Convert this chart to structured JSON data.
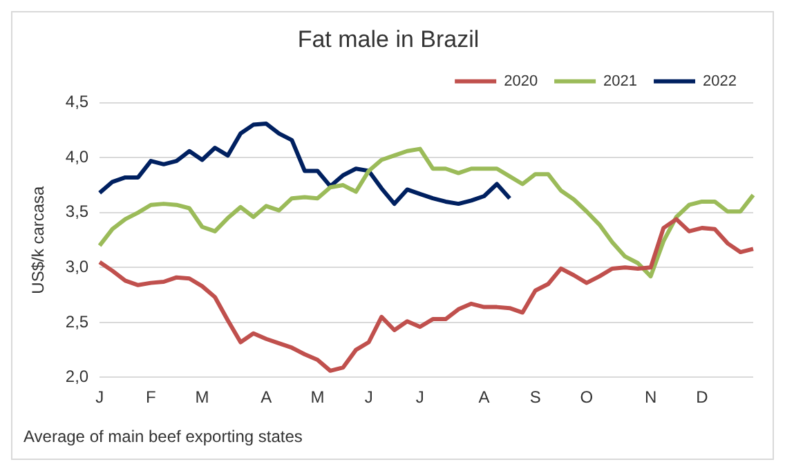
{
  "chart_data": {
    "type": "line",
    "title": "Fat male in Brazil",
    "ylabel": "US$/k carcasa",
    "annotations": [
      "Average of main beef exporting states"
    ],
    "categories": [
      "J",
      null,
      null,
      null,
      "F",
      null,
      null,
      null,
      "M",
      null,
      null,
      null,
      null,
      "A",
      null,
      null,
      null,
      "M",
      null,
      null,
      null,
      "J",
      null,
      null,
      null,
      "J",
      null,
      null,
      null,
      null,
      "A",
      null,
      null,
      null,
      "S",
      null,
      null,
      null,
      "O",
      null,
      null,
      null,
      null,
      "N",
      null,
      null,
      null,
      "D",
      null,
      null,
      null,
      null
    ],
    "series": [
      {
        "name": "2020",
        "color": "#c0504d",
        "values": [
          3.05,
          2.97,
          2.88,
          2.84,
          2.86,
          2.87,
          2.91,
          2.9,
          2.83,
          2.73,
          2.52,
          2.32,
          2.4,
          2.35,
          2.31,
          2.27,
          2.21,
          2.16,
          2.06,
          2.09,
          2.25,
          2.32,
          2.55,
          2.43,
          2.51,
          2.46,
          2.53,
          2.53,
          2.62,
          2.67,
          2.64,
          2.64,
          2.63,
          2.59,
          2.79,
          2.85,
          2.99,
          2.93,
          2.86,
          2.92,
          2.99,
          3.0,
          2.99,
          3.0,
          3.36,
          3.44,
          3.33,
          3.36,
          3.35,
          3.22,
          3.14,
          3.17
        ]
      },
      {
        "name": "2021",
        "color": "#9bbb59",
        "values": [
          3.2,
          3.35,
          3.44,
          3.5,
          3.57,
          3.58,
          3.57,
          3.54,
          3.37,
          3.33,
          3.45,
          3.55,
          3.46,
          3.56,
          3.52,
          3.63,
          3.64,
          3.63,
          3.73,
          3.75,
          3.69,
          3.88,
          3.98,
          4.02,
          4.06,
          4.08,
          3.9,
          3.9,
          3.86,
          3.9,
          3.9,
          3.9,
          3.83,
          3.76,
          3.85,
          3.85,
          3.7,
          3.62,
          3.51,
          3.39,
          3.23,
          3.1,
          3.04,
          2.92,
          3.24,
          3.46,
          3.57,
          3.6,
          3.6,
          3.51,
          3.51,
          3.66
        ]
      },
      {
        "name": "2022",
        "color": "#002060",
        "values": [
          3.68,
          3.78,
          3.82,
          3.82,
          3.97,
          3.94,
          3.97,
          4.06,
          3.98,
          4.09,
          4.02,
          4.22,
          4.3,
          4.31,
          4.22,
          4.16,
          3.88,
          3.88,
          3.74,
          3.84,
          3.9,
          3.88,
          3.72,
          3.58,
          3.71,
          3.67,
          3.63,
          3.6,
          3.58,
          3.61,
          3.65,
          3.76,
          3.63,
          null,
          null,
          null,
          null,
          null,
          null,
          null,
          null,
          null,
          null,
          null,
          null,
          null,
          null,
          null,
          null,
          null,
          null,
          null
        ]
      }
    ],
    "ylim": [
      2.0,
      4.5
    ],
    "yticks": [
      {
        "value": 2.0,
        "label": "2,0"
      },
      {
        "value": 2.5,
        "label": "2,5"
      },
      {
        "value": 3.0,
        "label": "3,0"
      },
      {
        "value": 3.5,
        "label": "3,5"
      },
      {
        "value": 4.0,
        "label": "4,0"
      },
      {
        "value": 4.5,
        "label": "4,5"
      }
    ],
    "grid": "y",
    "legend": "top right",
    "marker": "none",
    "line_style": "solid"
  }
}
